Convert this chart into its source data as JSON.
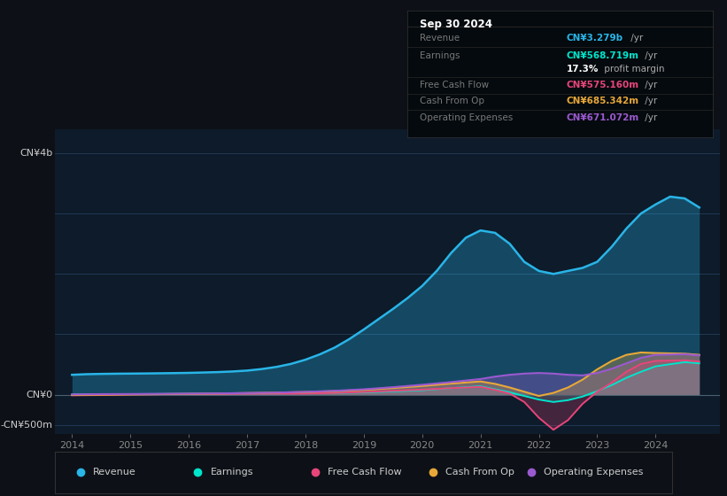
{
  "bg_color": "#0d1117",
  "plot_bg_color": "#0d1b2a",
  "grid_color": "#263d5a",
  "text_color": "#888888",
  "fig_size": [
    8.21,
    5.6
  ],
  "dpi": 100,
  "ylim": [
    -650000000,
    4400000000
  ],
  "series_colors": {
    "Revenue": "#29b5e8",
    "Earnings": "#00e5cc",
    "FreeCashFlow": "#e8457a",
    "CashFromOp": "#e8a838",
    "OperatingExpenses": "#9b59d0"
  },
  "legend_items": [
    "Revenue",
    "Earnings",
    "Free Cash Flow",
    "Cash From Op",
    "Operating Expenses"
  ],
  "legend_colors": [
    "#29b5e8",
    "#00e5cc",
    "#e8457a",
    "#e8a838",
    "#9b59d0"
  ],
  "infobox_title": "Sep 30 2024",
  "infobox_rows": [
    {
      "label": "Revenue",
      "value": "CN¥3.279b",
      "color": "#29b5e8",
      "suffix": " /yr"
    },
    {
      "label": "Earnings",
      "value": "CN¥568.719m",
      "color": "#00e5cc",
      "suffix": " /yr"
    },
    {
      "label": "",
      "value": "17.3%",
      "color": "#ffffff",
      "suffix": " profit margin"
    },
    {
      "label": "Free Cash Flow",
      "value": "CN¥575.160m",
      "color": "#e8457a",
      "suffix": " /yr"
    },
    {
      "label": "Cash From Op",
      "value": "CN¥685.342m",
      "color": "#e8a838",
      "suffix": " /yr"
    },
    {
      "label": "Operating Expenses",
      "value": "CN¥671.072m",
      "color": "#9b59d0",
      "suffix": " /yr"
    }
  ],
  "revenue_x": [
    2014.0,
    2014.25,
    2014.5,
    2014.75,
    2015.0,
    2015.25,
    2015.5,
    2015.75,
    2016.0,
    2016.25,
    2016.5,
    2016.75,
    2017.0,
    2017.25,
    2017.5,
    2017.75,
    2018.0,
    2018.25,
    2018.5,
    2018.75,
    2019.0,
    2019.25,
    2019.5,
    2019.75,
    2020.0,
    2020.25,
    2020.5,
    2020.75,
    2021.0,
    2021.25,
    2021.5,
    2021.75,
    2022.0,
    2022.25,
    2022.5,
    2022.75,
    2023.0,
    2023.25,
    2023.5,
    2023.75,
    2024.0,
    2024.25,
    2024.5,
    2024.75
  ],
  "revenue_y": [
    330000000,
    340000000,
    345000000,
    348000000,
    350000000,
    352000000,
    355000000,
    358000000,
    362000000,
    368000000,
    375000000,
    385000000,
    400000000,
    425000000,
    460000000,
    510000000,
    580000000,
    670000000,
    780000000,
    920000000,
    1080000000,
    1250000000,
    1420000000,
    1600000000,
    1800000000,
    2050000000,
    2350000000,
    2600000000,
    2720000000,
    2680000000,
    2500000000,
    2200000000,
    2050000000,
    2000000000,
    2050000000,
    2100000000,
    2200000000,
    2450000000,
    2750000000,
    3000000000,
    3150000000,
    3279000000,
    3250000000,
    3100000000
  ],
  "earnings_x": [
    2014.0,
    2014.5,
    2015.0,
    2015.5,
    2016.0,
    2016.5,
    2017.0,
    2017.5,
    2018.0,
    2018.5,
    2019.0,
    2019.5,
    2020.0,
    2020.5,
    2021.0,
    2021.25,
    2021.5,
    2021.75,
    2022.0,
    2022.25,
    2022.5,
    2022.75,
    2023.0,
    2023.25,
    2023.5,
    2023.75,
    2024.0,
    2024.5,
    2024.75
  ],
  "earnings_y": [
    5000000,
    8000000,
    10000000,
    12000000,
    15000000,
    18000000,
    20000000,
    22000000,
    25000000,
    30000000,
    38000000,
    55000000,
    75000000,
    110000000,
    140000000,
    90000000,
    40000000,
    -20000000,
    -80000000,
    -120000000,
    -90000000,
    -30000000,
    60000000,
    160000000,
    280000000,
    380000000,
    470000000,
    540000000,
    520000000
  ],
  "fcf_x": [
    2014.0,
    2014.5,
    2015.0,
    2015.5,
    2016.0,
    2016.5,
    2017.0,
    2017.5,
    2018.0,
    2018.5,
    2019.0,
    2019.5,
    2020.0,
    2020.5,
    2021.0,
    2021.25,
    2021.5,
    2021.75,
    2022.0,
    2022.25,
    2022.5,
    2022.75,
    2023.0,
    2023.25,
    2023.5,
    2023.75,
    2024.0,
    2024.5,
    2024.75
  ],
  "fcf_y": [
    -10000000,
    -5000000,
    5000000,
    8000000,
    10000000,
    12000000,
    15000000,
    18000000,
    20000000,
    30000000,
    45000000,
    65000000,
    85000000,
    110000000,
    130000000,
    80000000,
    20000000,
    -120000000,
    -380000000,
    -580000000,
    -420000000,
    -150000000,
    50000000,
    200000000,
    380000000,
    510000000,
    560000000,
    570000000,
    550000000
  ],
  "cashfromop_x": [
    2014.0,
    2014.5,
    2015.0,
    2015.5,
    2016.0,
    2016.5,
    2017.0,
    2017.5,
    2018.0,
    2018.5,
    2019.0,
    2019.5,
    2020.0,
    2020.5,
    2021.0,
    2021.25,
    2021.5,
    2021.75,
    2022.0,
    2022.25,
    2022.5,
    2022.75,
    2023.0,
    2023.25,
    2023.5,
    2023.75,
    2024.0,
    2024.5,
    2024.75
  ],
  "cashfromop_y": [
    -5000000,
    0,
    5000000,
    10000000,
    15000000,
    20000000,
    28000000,
    35000000,
    45000000,
    60000000,
    80000000,
    110000000,
    145000000,
    185000000,
    220000000,
    180000000,
    120000000,
    50000000,
    -20000000,
    30000000,
    120000000,
    250000000,
    420000000,
    560000000,
    660000000,
    700000000,
    690000000,
    680000000,
    660000000
  ],
  "opex_x": [
    2014.0,
    2014.5,
    2015.0,
    2015.5,
    2016.0,
    2016.5,
    2017.0,
    2017.5,
    2018.0,
    2018.5,
    2019.0,
    2019.5,
    2020.0,
    2020.5,
    2021.0,
    2021.25,
    2021.5,
    2021.75,
    2022.0,
    2022.25,
    2022.5,
    2022.75,
    2023.0,
    2023.25,
    2023.5,
    2023.75,
    2024.0,
    2024.5,
    2024.75
  ],
  "opex_y": [
    5000000,
    10000000,
    12000000,
    15000000,
    18000000,
    22000000,
    28000000,
    35000000,
    48000000,
    65000000,
    90000000,
    125000000,
    165000000,
    210000000,
    260000000,
    300000000,
    330000000,
    350000000,
    360000000,
    350000000,
    330000000,
    320000000,
    360000000,
    430000000,
    520000000,
    610000000,
    660000000,
    671000000,
    650000000
  ]
}
